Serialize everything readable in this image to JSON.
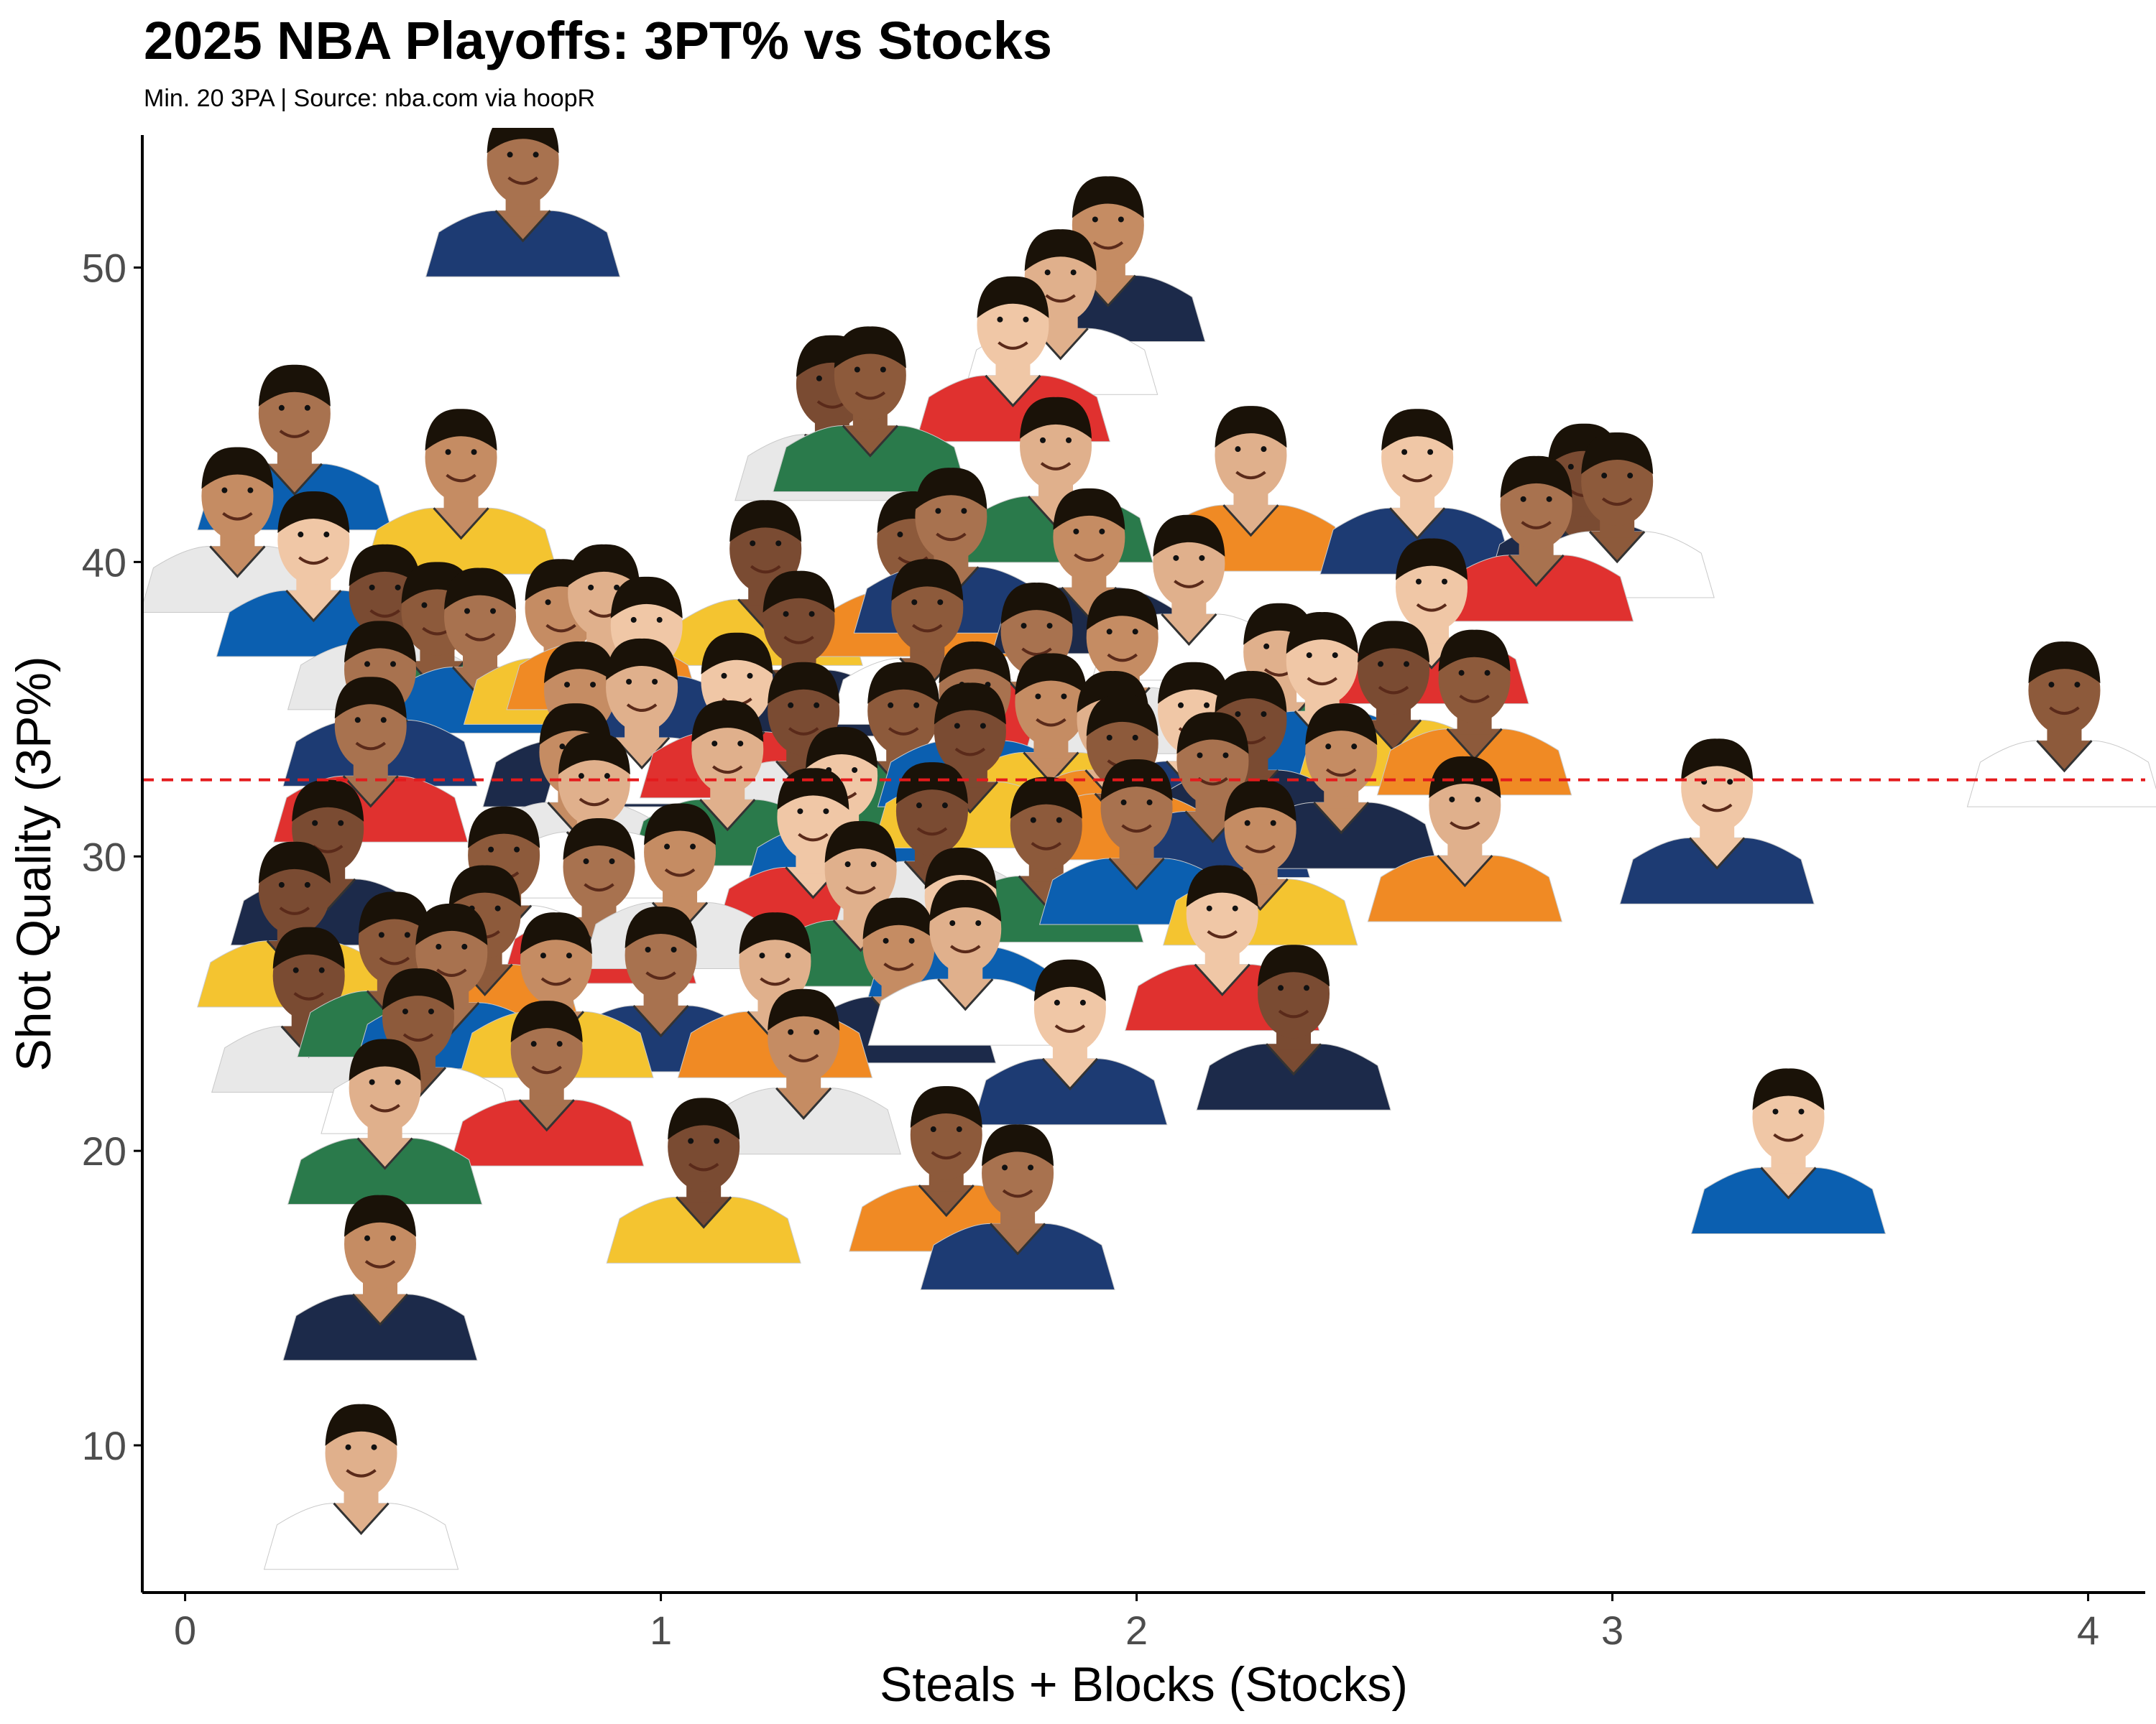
{
  "colors": {
    "background": "#ffffff",
    "axis": "#000000",
    "tick_text": "#4d4d4d",
    "reference_line": "#e41a1c",
    "skin_tones": [
      "#7a4b32",
      "#8d5a3b",
      "#a8724f",
      "#c58c63",
      "#e0b08c",
      "#f0c7a6"
    ],
    "jersey_colors": [
      "#e0312f",
      "#2a7a4b",
      "#f4c430",
      "#1d3b73",
      "#ffffff",
      "#e8e8e8",
      "#0b5fb0",
      "#f08a24",
      "#1c2a4a"
    ]
  },
  "chart_data": {
    "type": "scatter",
    "title": "2025 NBA Playoffs: 3PT% vs Stocks",
    "subtitle": "Min. 20 3PA | Source: nba.com via hoopR",
    "xlabel": "Steals + Blocks (Stocks)",
    "ylabel": "Shot Quality (3P%)",
    "xlim": [
      -0.09,
      4.12
    ],
    "ylim": [
      5,
      54.5
    ],
    "x_ticks": [
      0,
      1,
      2,
      3,
      4
    ],
    "x_tick_labels": [
      "0",
      "1",
      "2",
      "3",
      "4"
    ],
    "y_ticks": [
      10,
      20,
      30,
      40,
      50
    ],
    "y_tick_labels": [
      "10",
      "20",
      "30",
      "40",
      "50"
    ],
    "grid": false,
    "marker": "player headshot",
    "reference_line": {
      "orientation": "horizontal",
      "y": 32.6,
      "style": "dashed"
    },
    "points": [
      {
        "x": 0.71,
        "y": 51.2
      },
      {
        "x": 1.94,
        "y": 49.0
      },
      {
        "x": 1.84,
        "y": 47.2
      },
      {
        "x": 1.74,
        "y": 45.6
      },
      {
        "x": 1.36,
        "y": 43.6
      },
      {
        "x": 1.44,
        "y": 43.9
      },
      {
        "x": 0.23,
        "y": 42.6
      },
      {
        "x": 0.58,
        "y": 41.1
      },
      {
        "x": 2.24,
        "y": 41.2
      },
      {
        "x": 2.59,
        "y": 41.1
      },
      {
        "x": 2.94,
        "y": 40.6
      },
      {
        "x": 3.01,
        "y": 40.3
      },
      {
        "x": 2.84,
        "y": 39.5
      },
      {
        "x": 0.11,
        "y": 39.8
      },
      {
        "x": 1.83,
        "y": 41.5
      },
      {
        "x": 0.27,
        "y": 38.3
      },
      {
        "x": 1.22,
        "y": 38.0
      },
      {
        "x": 1.53,
        "y": 38.3
      },
      {
        "x": 1.61,
        "y": 39.1
      },
      {
        "x": 1.9,
        "y": 38.4
      },
      {
        "x": 2.11,
        "y": 37.5
      },
      {
        "x": 2.62,
        "y": 36.7
      },
      {
        "x": 0.42,
        "y": 36.5
      },
      {
        "x": 0.53,
        "y": 35.9
      },
      {
        "x": 0.62,
        "y": 35.7
      },
      {
        "x": 0.79,
        "y": 36.0
      },
      {
        "x": 0.88,
        "y": 36.5
      },
      {
        "x": 0.97,
        "y": 35.4
      },
      {
        "x": 1.29,
        "y": 35.6
      },
      {
        "x": 1.56,
        "y": 36.0
      },
      {
        "x": 1.79,
        "y": 35.2
      },
      {
        "x": 1.97,
        "y": 35.0
      },
      {
        "x": 2.3,
        "y": 34.5
      },
      {
        "x": 2.39,
        "y": 34.2
      },
      {
        "x": 2.54,
        "y": 33.9
      },
      {
        "x": 2.71,
        "y": 33.6
      },
      {
        "x": 0.41,
        "y": 33.9
      },
      {
        "x": 0.83,
        "y": 33.2
      },
      {
        "x": 0.96,
        "y": 33.3
      },
      {
        "x": 1.16,
        "y": 33.5
      },
      {
        "x": 1.3,
        "y": 32.5
      },
      {
        "x": 1.51,
        "y": 32.5
      },
      {
        "x": 1.66,
        "y": 33.2
      },
      {
        "x": 1.82,
        "y": 32.8
      },
      {
        "x": 1.95,
        "y": 32.2
      },
      {
        "x": 2.12,
        "y": 32.5
      },
      {
        "x": 2.24,
        "y": 32.2
      },
      {
        "x": 3.95,
        "y": 33.2
      },
      {
        "x": 0.39,
        "y": 32.0
      },
      {
        "x": 0.82,
        "y": 31.1
      },
      {
        "x": 1.14,
        "y": 31.2
      },
      {
        "x": 1.38,
        "y": 30.3
      },
      {
        "x": 1.65,
        "y": 31.8
      },
      {
        "x": 1.97,
        "y": 31.4
      },
      {
        "x": 2.16,
        "y": 30.8
      },
      {
        "x": 2.43,
        "y": 31.1
      },
      {
        "x": 0.86,
        "y": 30.1
      },
      {
        "x": 1.32,
        "y": 28.9
      },
      {
        "x": 1.57,
        "y": 29.1
      },
      {
        "x": 1.81,
        "y": 28.6
      },
      {
        "x": 2.0,
        "y": 29.2
      },
      {
        "x": 2.26,
        "y": 28.5
      },
      {
        "x": 2.69,
        "y": 29.3
      },
      {
        "x": 3.22,
        "y": 29.9
      },
      {
        "x": 0.3,
        "y": 28.5
      },
      {
        "x": 0.67,
        "y": 27.6
      },
      {
        "x": 0.87,
        "y": 27.2
      },
      {
        "x": 1.04,
        "y": 27.7
      },
      {
        "x": 1.42,
        "y": 27.1
      },
      {
        "x": 1.63,
        "y": 26.2
      },
      {
        "x": 0.23,
        "y": 26.4
      },
      {
        "x": 0.63,
        "y": 25.6
      },
      {
        "x": 1.0,
        "y": 24.2
      },
      {
        "x": 1.5,
        "y": 24.5
      },
      {
        "x": 1.64,
        "y": 25.1
      },
      {
        "x": 2.18,
        "y": 25.6
      },
      {
        "x": 0.26,
        "y": 23.5
      },
      {
        "x": 0.44,
        "y": 24.7
      },
      {
        "x": 0.56,
        "y": 24.3
      },
      {
        "x": 0.78,
        "y": 24.0
      },
      {
        "x": 1.24,
        "y": 24.0
      },
      {
        "x": 1.86,
        "y": 22.4
      },
      {
        "x": 2.33,
        "y": 22.9
      },
      {
        "x": 0.49,
        "y": 22.1
      },
      {
        "x": 0.76,
        "y": 21.0
      },
      {
        "x": 1.3,
        "y": 21.4
      },
      {
        "x": 0.42,
        "y": 19.7
      },
      {
        "x": 3.37,
        "y": 18.7
      },
      {
        "x": 1.09,
        "y": 17.7
      },
      {
        "x": 1.6,
        "y": 18.1
      },
      {
        "x": 1.75,
        "y": 16.8
      },
      {
        "x": 0.41,
        "y": 14.4
      },
      {
        "x": 0.37,
        "y": 7.3
      }
    ]
  }
}
